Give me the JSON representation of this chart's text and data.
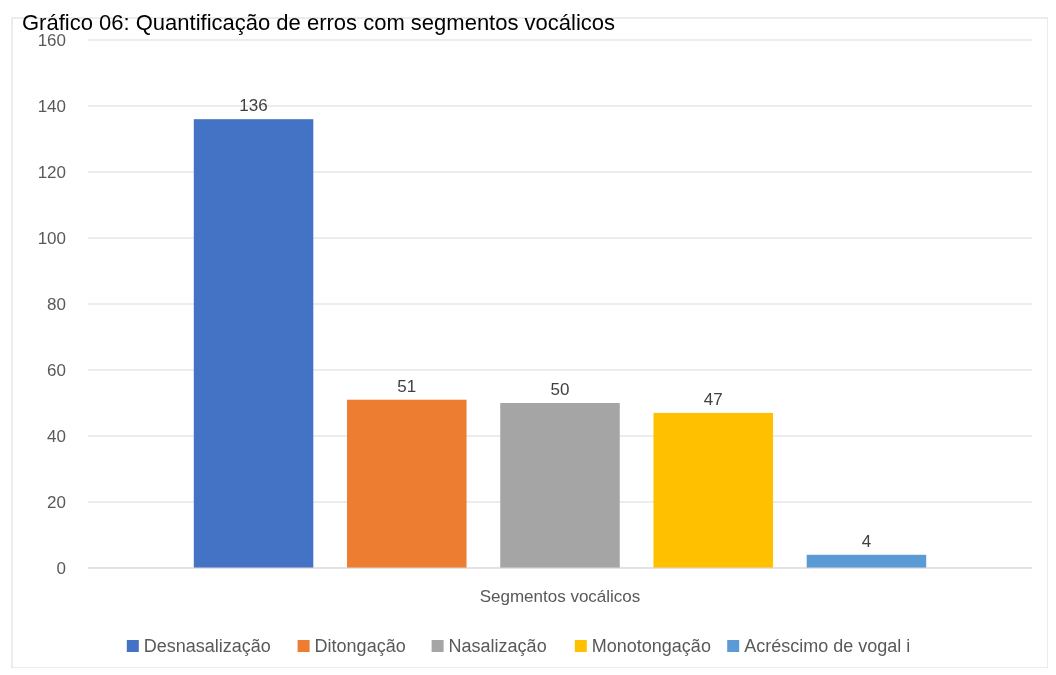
{
  "chart_data": {
    "type": "bar",
    "title": "Gráfico 06: Quantificação de erros com segmentos vocálicos",
    "categories": [
      "Segmentos vocálicos"
    ],
    "series": [
      {
        "name": "Desnasalização",
        "color": "#4472c4",
        "values": [
          136
        ]
      },
      {
        "name": "Ditongação",
        "color": "#ed7d31",
        "values": [
          51
        ]
      },
      {
        "name": "Nasalização",
        "color": "#a5a5a5",
        "values": [
          50
        ]
      },
      {
        "name": "Monotongação",
        "color": "#ffc000",
        "values": [
          47
        ]
      },
      {
        "name": "Acréscimo de vogal i",
        "color": "#5b9bd5",
        "values": [
          4
        ]
      }
    ],
    "ylim": [
      0,
      160
    ],
    "yticks": [
      0,
      20,
      40,
      60,
      80,
      100,
      120,
      140,
      160
    ],
    "grid": "y",
    "data_labels": true,
    "legend": "bottom"
  }
}
